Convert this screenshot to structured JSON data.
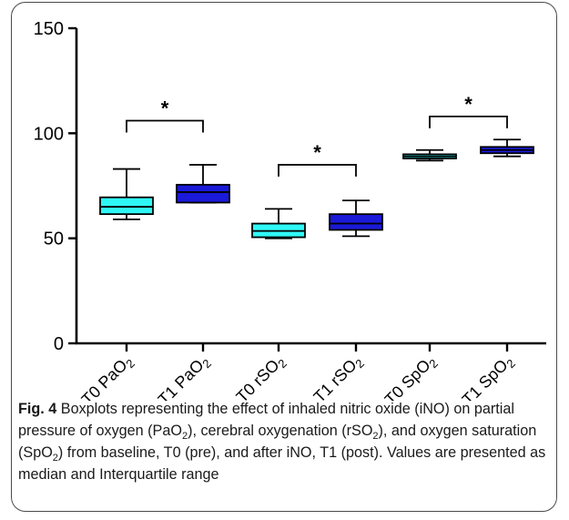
{
  "chart_data": {
    "type": "boxplot",
    "ylim": [
      0,
      150
    ],
    "yticks": [
      0,
      50,
      100,
      150
    ],
    "categories": [
      {
        "base": "T0 PaO",
        "sub": "2"
      },
      {
        "base": "T1 PaO",
        "sub": "2"
      },
      {
        "base": "T0 rSO",
        "sub": "2"
      },
      {
        "base": "T1 rSO",
        "sub": "2"
      },
      {
        "base": "T0 SpO",
        "sub": "2"
      },
      {
        "base": "T1 SpO",
        "sub": "2"
      }
    ],
    "boxes": [
      {
        "min": 59,
        "q1": 61.5,
        "median": 65,
        "q3": 69.5,
        "max": 83,
        "color": "#2ff7f5"
      },
      {
        "min": 67,
        "q1": 67,
        "median": 72,
        "q3": 75.5,
        "max": 85,
        "color": "#1a1ad8"
      },
      {
        "min": 50,
        "q1": 50.5,
        "median": 53.5,
        "q3": 57,
        "max": 64,
        "color": "#2ff7f5"
      },
      {
        "min": 51,
        "q1": 54,
        "median": 57,
        "q3": 61.5,
        "max": 68,
        "color": "#1a1ad8"
      },
      {
        "min": 87,
        "q1": 88,
        "median": 89,
        "q3": 90,
        "max": 92,
        "color": "#2ff7f5"
      },
      {
        "min": 89,
        "q1": 90.5,
        "median": 92,
        "q3": 93.5,
        "max": 97,
        "color": "#1a1ad8"
      }
    ],
    "significance": [
      {
        "from": 0,
        "to": 1,
        "y": 106,
        "label": "*"
      },
      {
        "from": 2,
        "to": 3,
        "y": 85,
        "label": "*"
      },
      {
        "from": 4,
        "to": 5,
        "y": 108,
        "label": "*"
      }
    ]
  },
  "caption": {
    "label": "Fig. 4",
    "segments": [
      {
        "text": " Boxplots representing the effect of inhaled nitric oxide (iNO) on partial pressure of oxygen (PaO"
      },
      {
        "text": "2",
        "sub": true
      },
      {
        "text": "), cerebral oxygenation (rSO"
      },
      {
        "text": "2",
        "sub": true
      },
      {
        "text": "), and oxygen saturation (SpO"
      },
      {
        "text": "2",
        "sub": true
      },
      {
        "text": ") from baseline, T0 (pre), and after iNO, T1 (post). Values are presented as median and Interquartile range"
      }
    ]
  }
}
